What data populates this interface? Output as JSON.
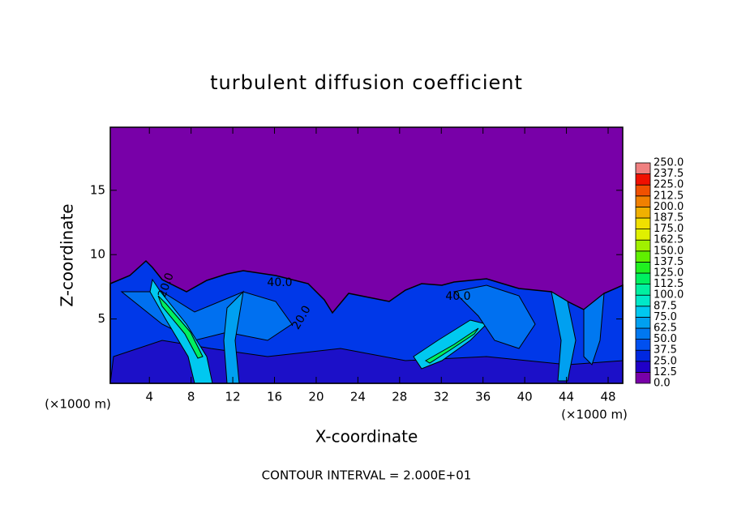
{
  "chart_data": {
    "type": "contour",
    "title": "turbulent diffusion coefficient",
    "x_label": "X-coordinate",
    "y_label": "Z-coordinate",
    "x_unit_left": "(×1000 m)",
    "x_unit_right": "(×1000 m)",
    "footer": "CONTOUR INTERVAL = 2.000E+01",
    "xlim": [
      0.25,
      49.4
    ],
    "ylim": [
      0,
      19.9
    ],
    "xticks": [
      4,
      8,
      12,
      16,
      20,
      24,
      28,
      32,
      36,
      40,
      44,
      48
    ],
    "yticks": [
      5,
      10,
      15
    ],
    "contour_labels": [
      "20.0",
      "40.0",
      "20.0",
      "40.0"
    ],
    "colorbar": {
      "levels": [
        {
          "value": 0,
          "label": "0.0"
        },
        {
          "value": 12.5,
          "label": "12.5"
        },
        {
          "value": 25,
          "label": "25.0"
        },
        {
          "value": 37.5,
          "label": "37.5"
        },
        {
          "value": 50,
          "label": "50.0"
        },
        {
          "value": 62.5,
          "label": "62.5"
        },
        {
          "value": 75,
          "label": "75.0"
        },
        {
          "value": 87.5,
          "label": "87.5"
        },
        {
          "value": 100,
          "label": "100.0"
        },
        {
          "value": 112.5,
          "label": "112.5"
        },
        {
          "value": 125,
          "label": "125.0"
        },
        {
          "value": 137.5,
          "label": "137.5"
        },
        {
          "value": 150,
          "label": "150.0"
        },
        {
          "value": 162.5,
          "label": "162.5"
        },
        {
          "value": 175,
          "label": "175.0"
        },
        {
          "value": 187.5,
          "label": "187.5"
        },
        {
          "value": 200,
          "label": "200.0"
        },
        {
          "value": 212.5,
          "label": "212.5"
        },
        {
          "value": 225,
          "label": "225.0"
        },
        {
          "value": 237.5,
          "label": "237.5"
        },
        {
          "value": 250,
          "label": "250.0"
        }
      ],
      "colors": [
        "#7800a8",
        "#2000c8",
        "#0028e0",
        "#0050f0",
        "#0078f0",
        "#00a0f0",
        "#00c8f0",
        "#00e8c8",
        "#00f0a0",
        "#00f060",
        "#20f020",
        "#60f000",
        "#a0f000",
        "#e0f000",
        "#f0e000",
        "#f0b000",
        "#f08000",
        "#f05000",
        "#f01000",
        "#f08080"
      ]
    }
  }
}
